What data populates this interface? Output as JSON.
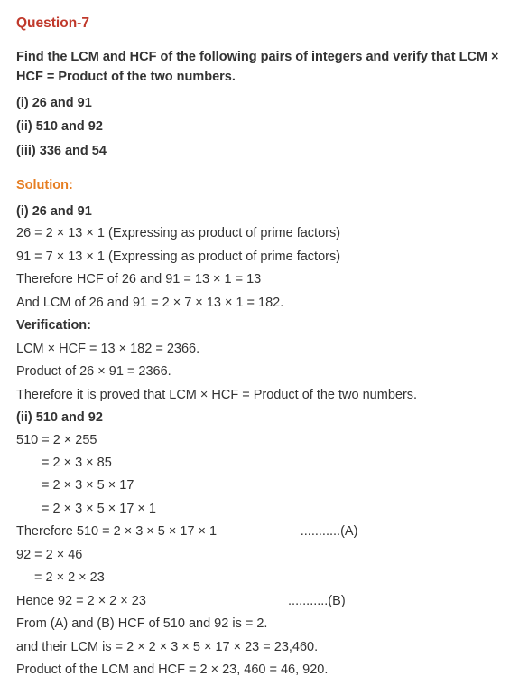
{
  "title": "Question-7",
  "prompt": "Find the LCM and HCF of the following pairs of integers and verify that LCM × HCF = Product of the two numbers.",
  "parts": {
    "i": "(i) 26 and 91",
    "ii": "(ii) 510 and 92",
    "iii": "(iii) 336 and 54"
  },
  "solution_label": "Solution:",
  "sol": {
    "i": {
      "head": "(i) 26 and 91",
      "l1": "26 = 2 × 13 × 1 (Expressing as product of prime factors)",
      "l2": "91 = 7 × 13 × 1 (Expressing as product of prime factors)",
      "l3": "Therefore HCF of 26 and 91 = 13 × 1 = 13",
      "l4": "And LCM of 26 and 91 = 2 × 7 × 13 × 1 = 182.",
      "verif": "Verification:",
      "l5": "LCM × HCF = 13 × 182 = 2366.",
      "l6": "Product of 26 × 91 = 2366.",
      "l7": "Therefore it is proved that LCM × HCF = Product of the two numbers."
    },
    "ii": {
      "head": "(ii) 510 and 92",
      "l1": "510 = 2 × 255",
      "l2": "= 2 × 3 × 85",
      "l3": "= 2 × 3 × 5 × 17",
      "l4": "= 2 × 3 × 5 × 17 × 1",
      "l5": "Therefore 510 = 2 × 3 × 5 × 17 × 1                       ...........(A)",
      "l6": "92 = 2 × 46",
      "l7": "= 2 × 2 × 23",
      "l8": "Hence 92 = 2 × 2 × 23                                       ...........(B)",
      "l9": "From (A) and (B) HCF of 510 and 92 is = 2.",
      "l10": "and their LCM is = 2 × 2 × 3 × 5 × 17 × 23 = 23,460.",
      "l11": "Product of the LCM and HCF = 2 × 23, 460 = 46, 920."
    }
  }
}
